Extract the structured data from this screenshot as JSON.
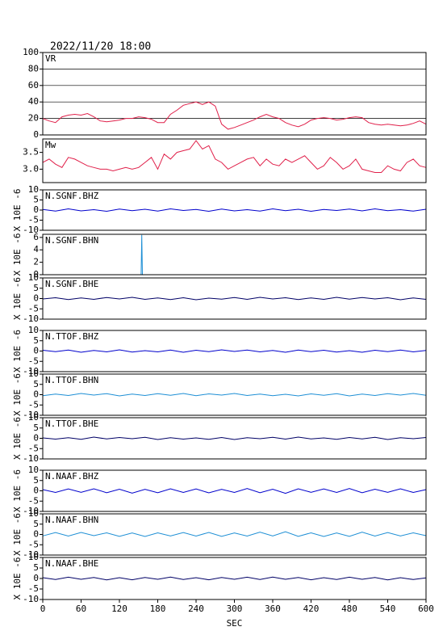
{
  "chart_data": [
    {
      "type": "line",
      "title": "2022/11/20 18:00",
      "label": "VR",
      "xlim": [
        0,
        600
      ],
      "ylim": [
        0,
        100
      ],
      "yticks": [
        0,
        20,
        40,
        60,
        80,
        100
      ],
      "grid": true,
      "x": [
        0,
        10,
        20,
        30,
        40,
        50,
        60,
        70,
        80,
        90,
        100,
        110,
        120,
        130,
        140,
        150,
        160,
        170,
        180,
        190,
        200,
        210,
        220,
        230,
        240,
        250,
        260,
        270,
        280,
        290,
        300,
        310,
        320,
        330,
        340,
        350,
        360,
        370,
        380,
        390,
        400,
        410,
        420,
        430,
        440,
        450,
        460,
        470,
        480,
        490,
        500,
        510,
        520,
        530,
        540,
        550,
        560,
        570,
        580,
        590,
        600
      ],
      "series": [
        {
          "color": "#e0204a",
          "values": [
            20,
            17,
            15,
            22,
            24,
            25,
            24,
            26,
            22,
            17,
            16,
            17,
            18,
            20,
            20,
            22,
            21,
            19,
            15,
            15,
            25,
            30,
            36,
            38,
            40,
            37,
            40,
            35,
            13,
            7,
            9,
            12,
            15,
            18,
            22,
            25,
            22,
            20,
            15,
            12,
            10,
            13,
            18,
            20,
            21,
            20,
            18,
            19,
            21,
            22,
            21,
            15,
            13,
            12,
            13,
            12,
            11,
            12,
            14,
            17,
            13
          ]
        }
      ]
    },
    {
      "type": "line",
      "label": "Mw",
      "xlim": [
        0,
        600
      ],
      "ylim": [
        2.6,
        3.9
      ],
      "yticks": [
        {
          "value": 3,
          "label": "3.0"
        },
        3.5
      ],
      "grid": false,
      "x": [
        0,
        10,
        20,
        30,
        40,
        50,
        60,
        70,
        80,
        90,
        100,
        110,
        120,
        130,
        140,
        150,
        160,
        170,
        180,
        190,
        200,
        210,
        220,
        230,
        240,
        250,
        260,
        270,
        280,
        290,
        300,
        310,
        320,
        330,
        340,
        350,
        360,
        370,
        380,
        390,
        400,
        410,
        420,
        430,
        440,
        450,
        460,
        470,
        480,
        490,
        500,
        510,
        520,
        530,
        540,
        550,
        560,
        570,
        580,
        590,
        600
      ],
      "series": [
        {
          "color": "#e0204a",
          "values": [
            3.2,
            3.3,
            3.15,
            3.05,
            3.35,
            3.3,
            3.2,
            3.1,
            3.05,
            3.0,
            3.0,
            2.95,
            3.0,
            3.05,
            3.0,
            3.05,
            3.2,
            3.35,
            3.0,
            3.45,
            3.3,
            3.5,
            3.55,
            3.6,
            3.85,
            3.6,
            3.7,
            3.3,
            3.2,
            3.0,
            3.1,
            3.2,
            3.3,
            3.35,
            3.1,
            3.3,
            3.15,
            3.1,
            3.3,
            3.2,
            3.3,
            3.4,
            3.2,
            3.0,
            3.1,
            3.35,
            3.2,
            3.0,
            3.1,
            3.3,
            3.0,
            2.95,
            2.9,
            2.9,
            3.1,
            3.0,
            2.95,
            3.2,
            3.3,
            3.1,
            3.05
          ]
        }
      ]
    },
    {
      "type": "line",
      "label": "N.SGNF.BHZ",
      "ylabel": "X 10E -6",
      "xlim": [
        0,
        600
      ],
      "ylim": [
        -10,
        10
      ],
      "yticks": [
        -10,
        -5,
        0,
        5,
        10
      ],
      "grid": false,
      "x": [
        0,
        20,
        40,
        60,
        80,
        100,
        120,
        140,
        160,
        180,
        200,
        220,
        240,
        260,
        280,
        300,
        320,
        340,
        360,
        380,
        400,
        420,
        440,
        460,
        480,
        500,
        520,
        540,
        560,
        580,
        600
      ],
      "series": [
        {
          "color": "#0000cc",
          "values": [
            0.3,
            -0.5,
            0.6,
            -0.4,
            0.2,
            -0.6,
            0.5,
            -0.3,
            0.4,
            -0.5,
            0.6,
            -0.2,
            0.3,
            -0.6,
            0.5,
            -0.4,
            0.2,
            -0.5,
            0.6,
            -0.3,
            0.4,
            -0.6,
            0.3,
            -0.2,
            0.5,
            -0.4,
            0.6,
            -0.3,
            0.2,
            -0.5,
            0.4
          ]
        }
      ]
    },
    {
      "type": "line",
      "label": "N.SGNF.BHN",
      "ylabel": "X 10E -6",
      "xlim": [
        0,
        600
      ],
      "ylim": [
        0,
        6.5
      ],
      "yticks": [
        0,
        2,
        4,
        6
      ],
      "grid": false,
      "x": [
        0,
        154,
        155,
        156,
        600
      ],
      "series": [
        {
          "color": "#1e8fd5",
          "values": [
            0,
            0,
            6.4,
            0,
            0
          ]
        }
      ]
    },
    {
      "type": "line",
      "label": "N.SGNF.BHE",
      "ylabel": "X 10E -6",
      "xlim": [
        0,
        600
      ],
      "ylim": [
        -10,
        10
      ],
      "yticks": [
        -10,
        -5,
        0,
        5,
        10
      ],
      "grid": false,
      "x": [
        0,
        20,
        40,
        60,
        80,
        100,
        120,
        140,
        160,
        180,
        200,
        220,
        240,
        260,
        280,
        300,
        320,
        340,
        360,
        380,
        400,
        420,
        440,
        460,
        480,
        500,
        520,
        540,
        560,
        580,
        600
      ],
      "series": [
        {
          "color": "#000066",
          "values": [
            -0.2,
            0.4,
            -0.5,
            0.3,
            -0.4,
            0.5,
            -0.2,
            0.6,
            -0.4,
            0.3,
            -0.5,
            0.4,
            -0.6,
            0.2,
            -0.3,
            0.5,
            -0.4,
            0.6,
            -0.2,
            0.4,
            -0.5,
            0.3,
            -0.4,
            0.6,
            -0.3,
            0.5,
            -0.2,
            0.4,
            -0.6,
            0.3,
            -0.4
          ]
        }
      ]
    },
    {
      "type": "line",
      "label": "N.TTOF.BHZ",
      "ylabel": "X 10E -6",
      "xlim": [
        0,
        600
      ],
      "ylim": [
        -10,
        10
      ],
      "yticks": [
        -10,
        -5,
        0,
        5,
        10
      ],
      "grid": false,
      "x": [
        0,
        20,
        40,
        60,
        80,
        100,
        120,
        140,
        160,
        180,
        200,
        220,
        240,
        260,
        280,
        300,
        320,
        340,
        360,
        380,
        400,
        420,
        440,
        460,
        480,
        500,
        520,
        540,
        560,
        580,
        600
      ],
      "series": [
        {
          "color": "#0000cc",
          "values": [
            0.4,
            -0.3,
            0.5,
            -0.6,
            0.3,
            -0.4,
            0.6,
            -0.5,
            0.2,
            -0.4,
            0.5,
            -0.6,
            0.4,
            -0.3,
            0.6,
            -0.2,
            0.5,
            -0.4,
            0.3,
            -0.6,
            0.5,
            -0.3,
            0.4,
            -0.5,
            0.2,
            -0.6,
            0.4,
            -0.3,
            0.5,
            -0.4,
            0.3
          ]
        }
      ]
    },
    {
      "type": "line",
      "label": "N.TTOF.BHN",
      "ylabel": "X 10E -6",
      "xlim": [
        0,
        600
      ],
      "ylim": [
        -10,
        10
      ],
      "yticks": [
        -10,
        -5,
        0,
        5,
        10
      ],
      "grid": false,
      "x": [
        0,
        20,
        40,
        60,
        80,
        100,
        120,
        140,
        160,
        180,
        200,
        220,
        240,
        260,
        280,
        300,
        320,
        340,
        360,
        380,
        400,
        420,
        440,
        460,
        480,
        500,
        520,
        540,
        560,
        580,
        600
      ],
      "series": [
        {
          "color": "#1e8fd5",
          "values": [
            -0.5,
            0.3,
            -0.4,
            0.6,
            -0.2,
            0.5,
            -0.6,
            0.3,
            -0.4,
            0.5,
            -0.3,
            0.6,
            -0.5,
            0.4,
            -0.2,
            0.6,
            -0.4,
            0.3,
            -0.5,
            0.2,
            -0.6,
            0.4,
            -0.3,
            0.5,
            -0.6,
            0.3,
            -0.4,
            0.5,
            -0.2,
            0.6,
            -0.3
          ]
        }
      ]
    },
    {
      "type": "line",
      "label": "N.TTOF.BHE",
      "ylabel": "X 10E -6",
      "xlim": [
        0,
        600
      ],
      "ylim": [
        -10,
        10
      ],
      "yticks": [
        -10,
        -5,
        0,
        5,
        10
      ],
      "grid": false,
      "x": [
        0,
        20,
        40,
        60,
        80,
        100,
        120,
        140,
        160,
        180,
        200,
        220,
        240,
        260,
        280,
        300,
        320,
        340,
        360,
        380,
        400,
        420,
        440,
        460,
        480,
        500,
        520,
        540,
        560,
        580,
        600
      ],
      "series": [
        {
          "color": "#000066",
          "values": [
            0.2,
            -0.4,
            0.3,
            -0.5,
            0.6,
            -0.3,
            0.4,
            -0.2,
            0.5,
            -0.6,
            0.3,
            -0.4,
            0.2,
            -0.5,
            0.4,
            -0.6,
            0.3,
            -0.2,
            0.5,
            -0.4,
            0.6,
            -0.3,
            0.2,
            -0.5,
            0.4,
            -0.3,
            0.5,
            -0.6,
            0.3,
            -0.2,
            0.4
          ]
        }
      ]
    },
    {
      "type": "line",
      "label": "N.NAAF.BHZ",
      "ylabel": "X 10E -6",
      "xlim": [
        0,
        600
      ],
      "ylim": [
        -10,
        10
      ],
      "yticks": [
        -10,
        -5,
        0,
        5,
        10
      ],
      "grid": false,
      "x": [
        0,
        20,
        40,
        60,
        80,
        100,
        120,
        140,
        160,
        180,
        200,
        220,
        240,
        260,
        280,
        300,
        320,
        340,
        360,
        380,
        400,
        420,
        440,
        460,
        480,
        500,
        520,
        540,
        560,
        580,
        600
      ],
      "series": [
        {
          "color": "#0000cc",
          "values": [
            0.6,
            -0.8,
            0.9,
            -0.7,
            1.0,
            -0.9,
            0.8,
            -1.1,
            0.7,
            -0.9,
            1.0,
            -0.8,
            0.9,
            -1.0,
            0.7,
            -0.8,
            1.1,
            -0.9,
            0.8,
            -1.2,
            1.0,
            -0.7,
            0.9,
            -0.8,
            1.1,
            -0.9,
            0.8,
            -0.7,
            1.0,
            -0.8,
            0.6
          ]
        }
      ]
    },
    {
      "type": "line",
      "label": "N.NAAF.BHN",
      "ylabel": "X 10E -6",
      "xlim": [
        0,
        600
      ],
      "ylim": [
        -10,
        10
      ],
      "yticks": [
        -10,
        -5,
        0,
        5,
        10
      ],
      "grid": false,
      "x": [
        0,
        20,
        40,
        60,
        80,
        100,
        120,
        140,
        160,
        180,
        200,
        220,
        240,
        260,
        280,
        300,
        320,
        340,
        360,
        380,
        400,
        420,
        440,
        460,
        480,
        500,
        520,
        540,
        560,
        580,
        600
      ],
      "series": [
        {
          "color": "#1e8fd5",
          "values": [
            -0.7,
            0.9,
            -0.8,
            1.0,
            -0.6,
            0.8,
            -0.9,
            0.7,
            -1.0,
            0.8,
            -0.7,
            0.9,
            -0.8,
            1.0,
            -0.9,
            0.7,
            -0.8,
            1.1,
            -0.7,
            1.3,
            -0.9,
            0.8,
            -1.0,
            0.7,
            -0.9,
            1.1,
            -0.8,
            0.9,
            -0.7,
            0.8,
            -0.6
          ]
        }
      ]
    },
    {
      "type": "line",
      "label": "N.NAAF.BHE",
      "ylabel": "X 10E -6",
      "xlim": [
        0,
        600
      ],
      "ylim": [
        -10,
        10
      ],
      "yticks": [
        -10,
        -5,
        0,
        5,
        10
      ],
      "grid": false,
      "x": [
        0,
        20,
        40,
        60,
        80,
        100,
        120,
        140,
        160,
        180,
        200,
        220,
        240,
        260,
        280,
        300,
        320,
        340,
        360,
        380,
        400,
        420,
        440,
        460,
        480,
        500,
        520,
        540,
        560,
        580,
        600
      ],
      "series": [
        {
          "color": "#000066",
          "values": [
            0.4,
            -0.5,
            0.6,
            -0.4,
            0.5,
            -0.7,
            0.4,
            -0.6,
            0.5,
            -0.4,
            0.7,
            -0.5,
            0.4,
            -0.6,
            0.5,
            -0.4,
            0.6,
            -0.5,
            0.7,
            -0.4,
            0.5,
            -0.6,
            0.4,
            -0.5,
            0.6,
            -0.4,
            0.5,
            -0.7,
            0.4,
            -0.5,
            0.3
          ]
        }
      ],
      "xlabel": "SEC",
      "xticks": [
        0,
        60,
        120,
        180,
        240,
        300,
        360,
        420,
        480,
        540,
        600
      ]
    }
  ]
}
